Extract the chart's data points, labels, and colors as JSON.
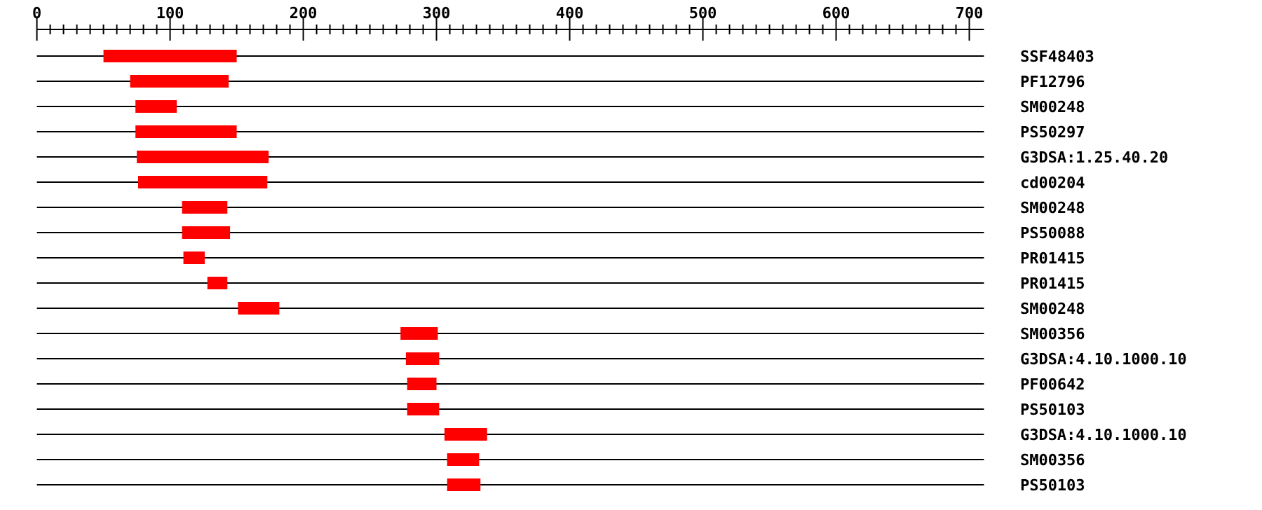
{
  "chart_data": {
    "type": "bar",
    "orientation": "horizontal",
    "grid": "y",
    "categories": [
      "SSF48403",
      "PF12796",
      "SM00248",
      "PS50297",
      "G3DSA:1.25.40.20",
      "cd00204",
      "SM00248",
      "PS50088",
      "PR01415",
      "PR01415",
      "SM00248",
      "SM00356",
      "G3DSA:4.10.1000.10",
      "PF00642",
      "PS50103",
      "G3DSA:4.10.1000.10",
      "SM00356",
      "PS50103"
    ],
    "base": [
      50,
      70,
      74,
      74,
      75,
      76,
      109,
      109,
      110,
      128,
      151,
      273,
      277,
      278,
      278,
      306,
      308,
      308
    ],
    "values": [
      100,
      74,
      31,
      76,
      99,
      97,
      34,
      36,
      16,
      15,
      31,
      28,
      25,
      22,
      24,
      32,
      24,
      25
    ],
    "color": "#ff0000",
    "xlim": [
      0,
      711
    ],
    "xticks": [
      0,
      {
        "value": 10,
        "label": null
      },
      {
        "value": 20,
        "label": null
      },
      {
        "value": 30,
        "label": null
      },
      {
        "value": 40,
        "label": null
      },
      {
        "value": 50,
        "label": null
      },
      {
        "value": 60,
        "label": null
      },
      {
        "value": 70,
        "label": null
      },
      {
        "value": 80,
        "label": null
      },
      {
        "value": 90,
        "label": null
      },
      100,
      {
        "value": 110,
        "label": null
      },
      {
        "value": 120,
        "label": null
      },
      {
        "value": 130,
        "label": null
      },
      {
        "value": 140,
        "label": null
      },
      {
        "value": 150,
        "label": null
      },
      {
        "value": 160,
        "label": null
      },
      {
        "value": 170,
        "label": null
      },
      {
        "value": 180,
        "label": null
      },
      {
        "value": 190,
        "label": null
      },
      200,
      {
        "value": 210,
        "label": null
      },
      {
        "value": 220,
        "label": null
      },
      {
        "value": 230,
        "label": null
      },
      {
        "value": 240,
        "label": null
      },
      {
        "value": 250,
        "label": null
      },
      {
        "value": 260,
        "label": null
      },
      {
        "value": 270,
        "label": null
      },
      {
        "value": 280,
        "label": null
      },
      {
        "value": 290,
        "label": null
      },
      300,
      {
        "value": 310,
        "label": null
      },
      {
        "value": 320,
        "label": null
      },
      {
        "value": 330,
        "label": null
      },
      {
        "value": 340,
        "label": null
      },
      {
        "value": 350,
        "label": null
      },
      {
        "value": 360,
        "label": null
      },
      {
        "value": 370,
        "label": null
      },
      {
        "value": 380,
        "label": null
      },
      {
        "value": 390,
        "label": null
      },
      400,
      {
        "value": 410,
        "label": null
      },
      {
        "value": 420,
        "label": null
      },
      {
        "value": 430,
        "label": null
      },
      {
        "value": 440,
        "label": null
      },
      {
        "value": 450,
        "label": null
      },
      {
        "value": 460,
        "label": null
      },
      {
        "value": 470,
        "label": null
      },
      {
        "value": 480,
        "label": null
      },
      {
        "value": 490,
        "label": null
      },
      500,
      {
        "value": 510,
        "label": null
      },
      {
        "value": 520,
        "label": null
      },
      {
        "value": 530,
        "label": null
      },
      {
        "value": 540,
        "label": null
      },
      {
        "value": 550,
        "label": null
      },
      {
        "value": 560,
        "label": null
      },
      {
        "value": 570,
        "label": null
      },
      {
        "value": 580,
        "label": null
      },
      {
        "value": 590,
        "label": null
      },
      600,
      {
        "value": 610,
        "label": null
      },
      {
        "value": 620,
        "label": null
      },
      {
        "value": 630,
        "label": null
      },
      {
        "value": 640,
        "label": null
      },
      {
        "value": 650,
        "label": null
      },
      {
        "value": 660,
        "label": null
      },
      {
        "value": 670,
        "label": null
      },
      {
        "value": 680,
        "label": null
      },
      {
        "value": 690,
        "label": null
      },
      700
    ]
  }
}
